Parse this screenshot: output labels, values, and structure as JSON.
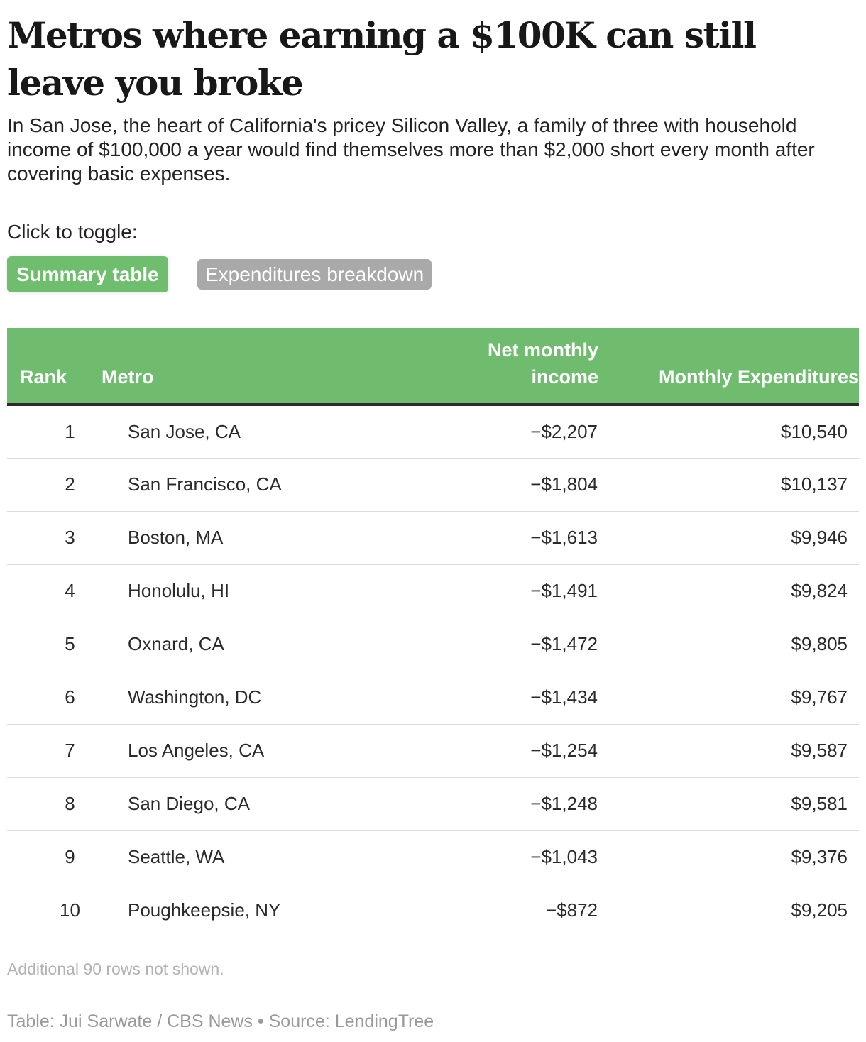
{
  "title": "Metros where earning a $100K can still leave you broke",
  "subtitle": "In San Jose, the heart of California's pricey Silicon Valley, a family of three with household income of $100,000 a year would find themselves more than $2,000 short every month after covering basic expenses.",
  "toggle": {
    "label": "Click to toggle:",
    "options": [
      "Summary table",
      "Expenditures breakdown"
    ],
    "active": "Summary table"
  },
  "colors": {
    "header_bg": "#6fbc6f",
    "active_toggle": "#6fbe6e",
    "inactive_toggle": "#a9a9a9"
  },
  "chart_data": {
    "type": "table",
    "columns": [
      "Rank",
      "Metro",
      "Net monthly income",
      "Monthly Expenditures"
    ],
    "rows": [
      {
        "rank": "1",
        "metro": "San Jose, CA",
        "net": "−$2,207",
        "exp": "$10,540"
      },
      {
        "rank": "2",
        "metro": "San Francisco, CA",
        "net": "−$1,804",
        "exp": "$10,137"
      },
      {
        "rank": "3",
        "metro": "Boston, MA",
        "net": "−$1,613",
        "exp": "$9,946"
      },
      {
        "rank": "4",
        "metro": "Honolulu, HI",
        "net": "−$1,491",
        "exp": "$9,824"
      },
      {
        "rank": "5",
        "metro": "Oxnard, CA",
        "net": "−$1,472",
        "exp": "$9,805"
      },
      {
        "rank": "6",
        "metro": "Washington, DC",
        "net": "−$1,434",
        "exp": "$9,767"
      },
      {
        "rank": "7",
        "metro": "Los Angeles, CA",
        "net": "−$1,254",
        "exp": "$9,587"
      },
      {
        "rank": "8",
        "metro": "San Diego, CA",
        "net": "−$1,248",
        "exp": "$9,581"
      },
      {
        "rank": "9",
        "metro": "Seattle, WA",
        "net": "−$1,043",
        "exp": "$9,376"
      },
      {
        "rank": "10",
        "metro": "Poughkeepsie, NY",
        "net": "−$872",
        "exp": "$9,205"
      }
    ]
  },
  "note": "Additional 90 rows not shown.",
  "credit": "Table: Jui Sarwate / CBS News • Source: LendingTree"
}
